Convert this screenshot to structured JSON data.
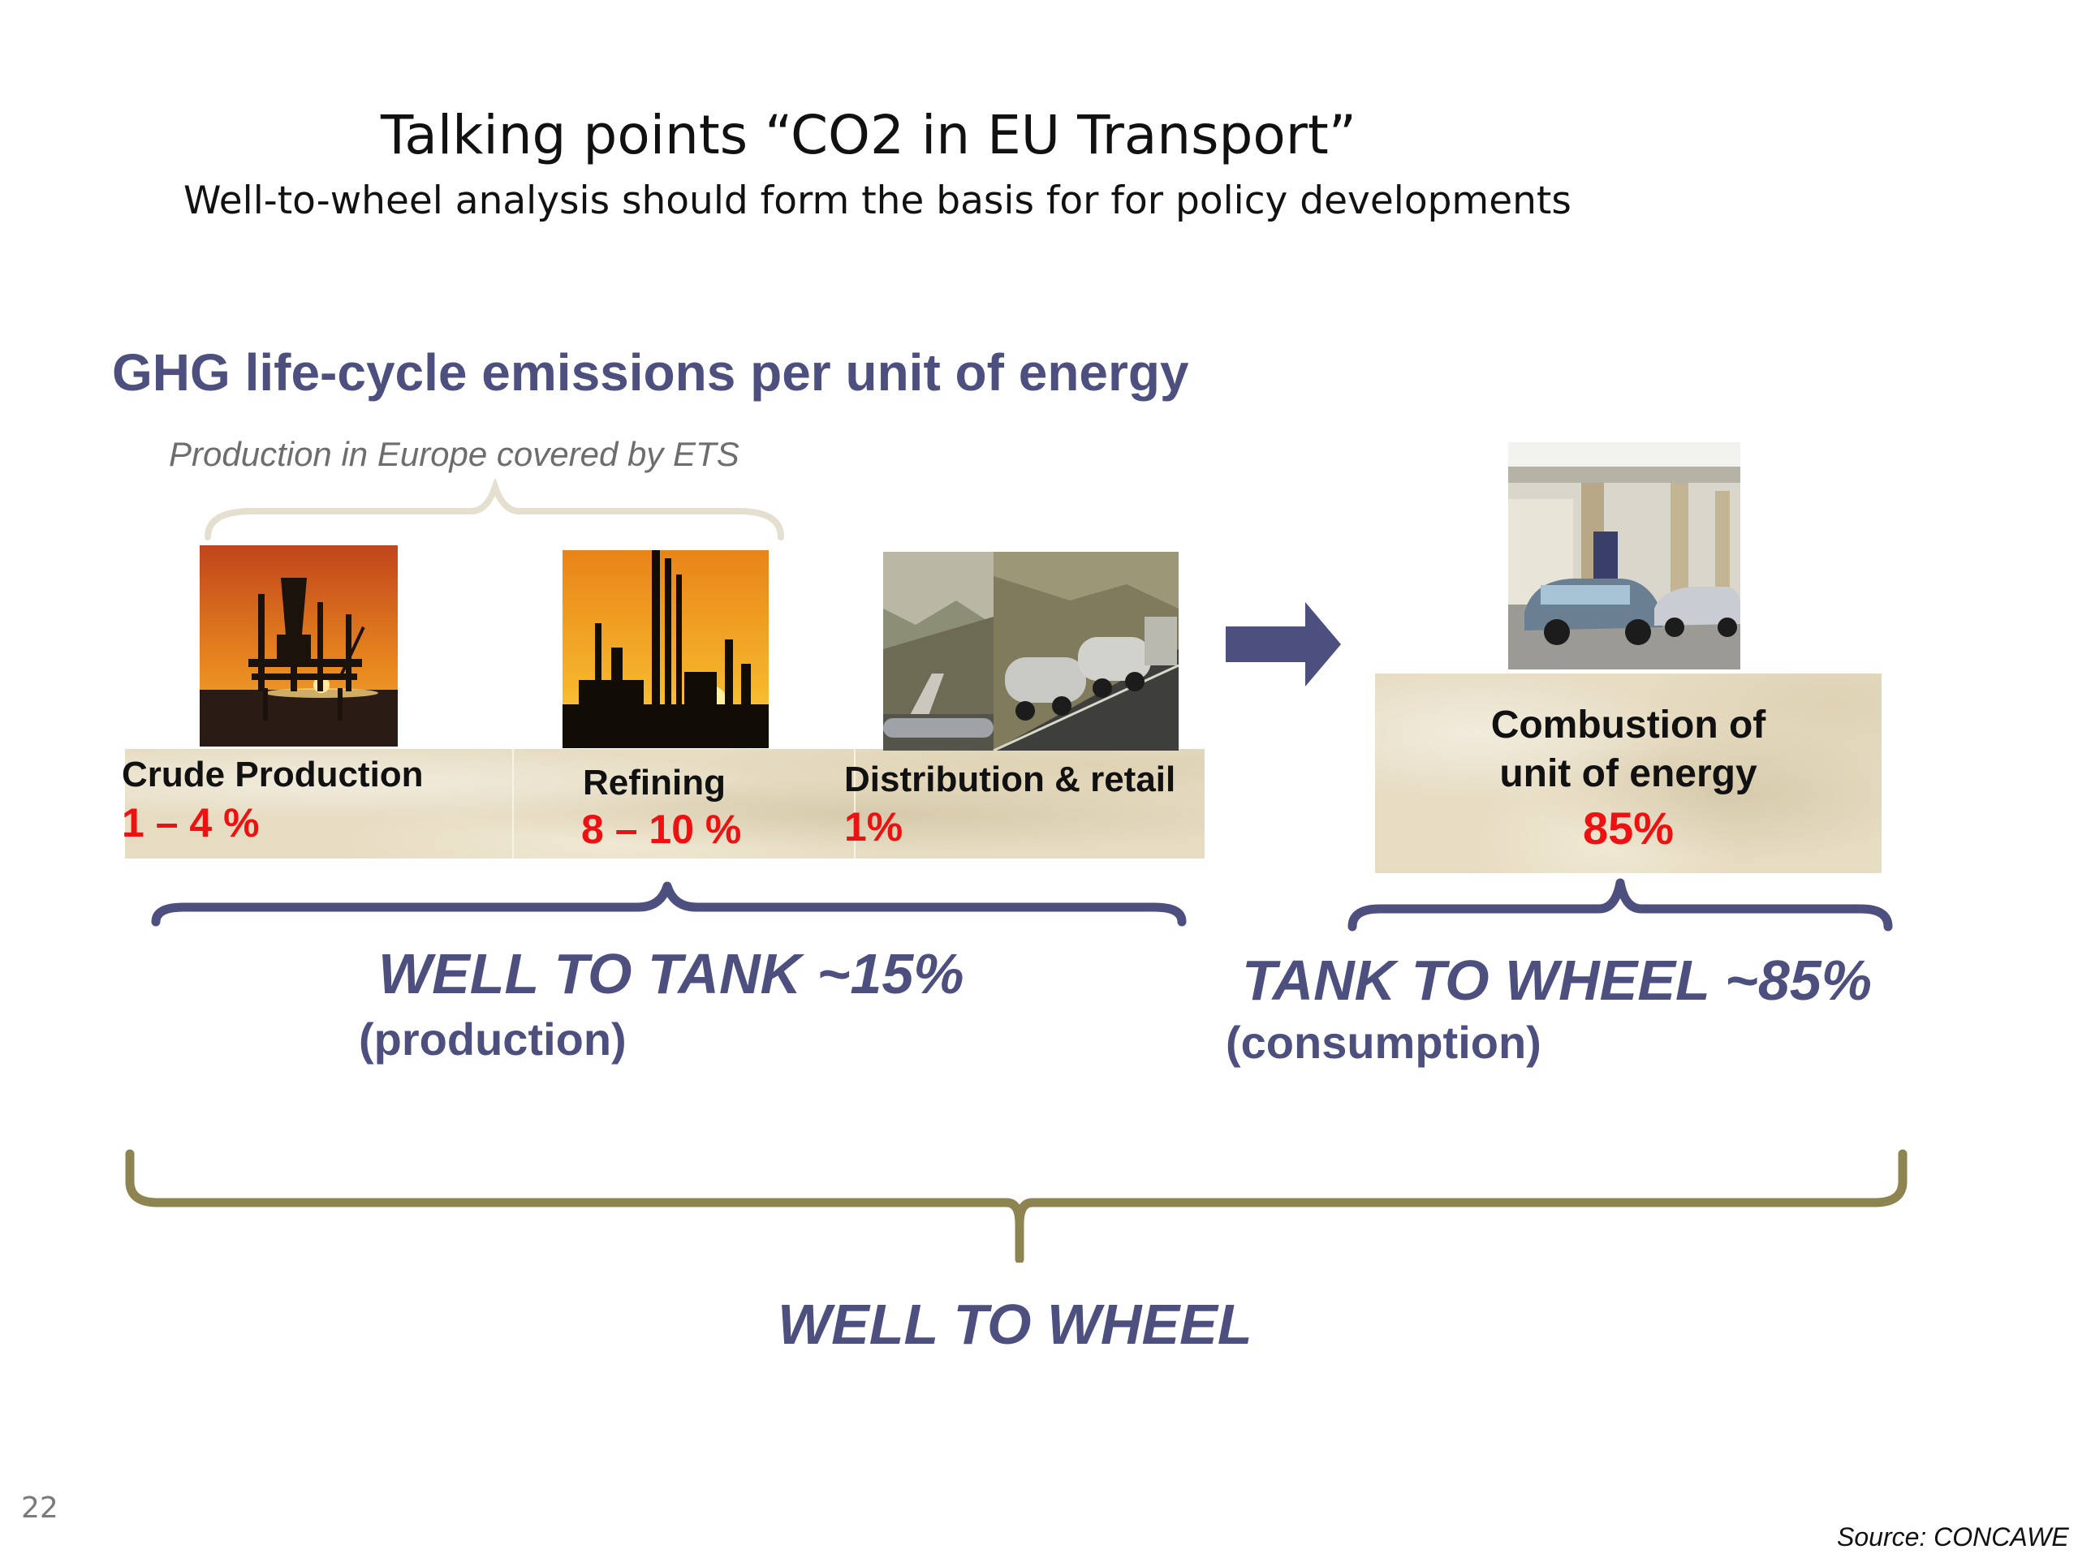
{
  "slide": {
    "title": "Talking points “CO2 in EU Transport”",
    "subtitle": "Well-to-wheel analysis should form the basis for for policy developments",
    "page_number": "22",
    "source": "Source: CONCAWE"
  },
  "diagram": {
    "heading": "GHG life-cycle emissions per unit of energy",
    "ets_note": "Production in Europe covered by ETS",
    "stages": [
      {
        "label": "Crude Production",
        "value": "1 – 4 %",
        "icon": "oil-rig-photo"
      },
      {
        "label": "Refining",
        "value": "8 – 10 %",
        "icon": "refinery-photo"
      },
      {
        "label": "Distribution & retail",
        "value": "1%",
        "icon": "pipeline-tanker-photo"
      }
    ],
    "combustion": {
      "label_line1": "Combustion of",
      "label_line2": "unit of energy",
      "value": "85%",
      "icon": "gas-station-photo"
    },
    "well_to_tank": {
      "label": "WELL TO TANK ~15%",
      "sub": "(production)"
    },
    "tank_to_wheel": {
      "label": "TANK TO WHEEL ~85%",
      "sub": "(consumption)"
    },
    "well_to_wheel": {
      "label": "WELL TO WHEEL"
    }
  },
  "colors": {
    "heading": "#4d4f7e",
    "value_red": "#ee1111",
    "bracket_blue": "#4d4f7e",
    "bracket_gold": "#8d8452",
    "ets_brace": "#e4dfcf",
    "parchment": "#e6dcc2"
  }
}
